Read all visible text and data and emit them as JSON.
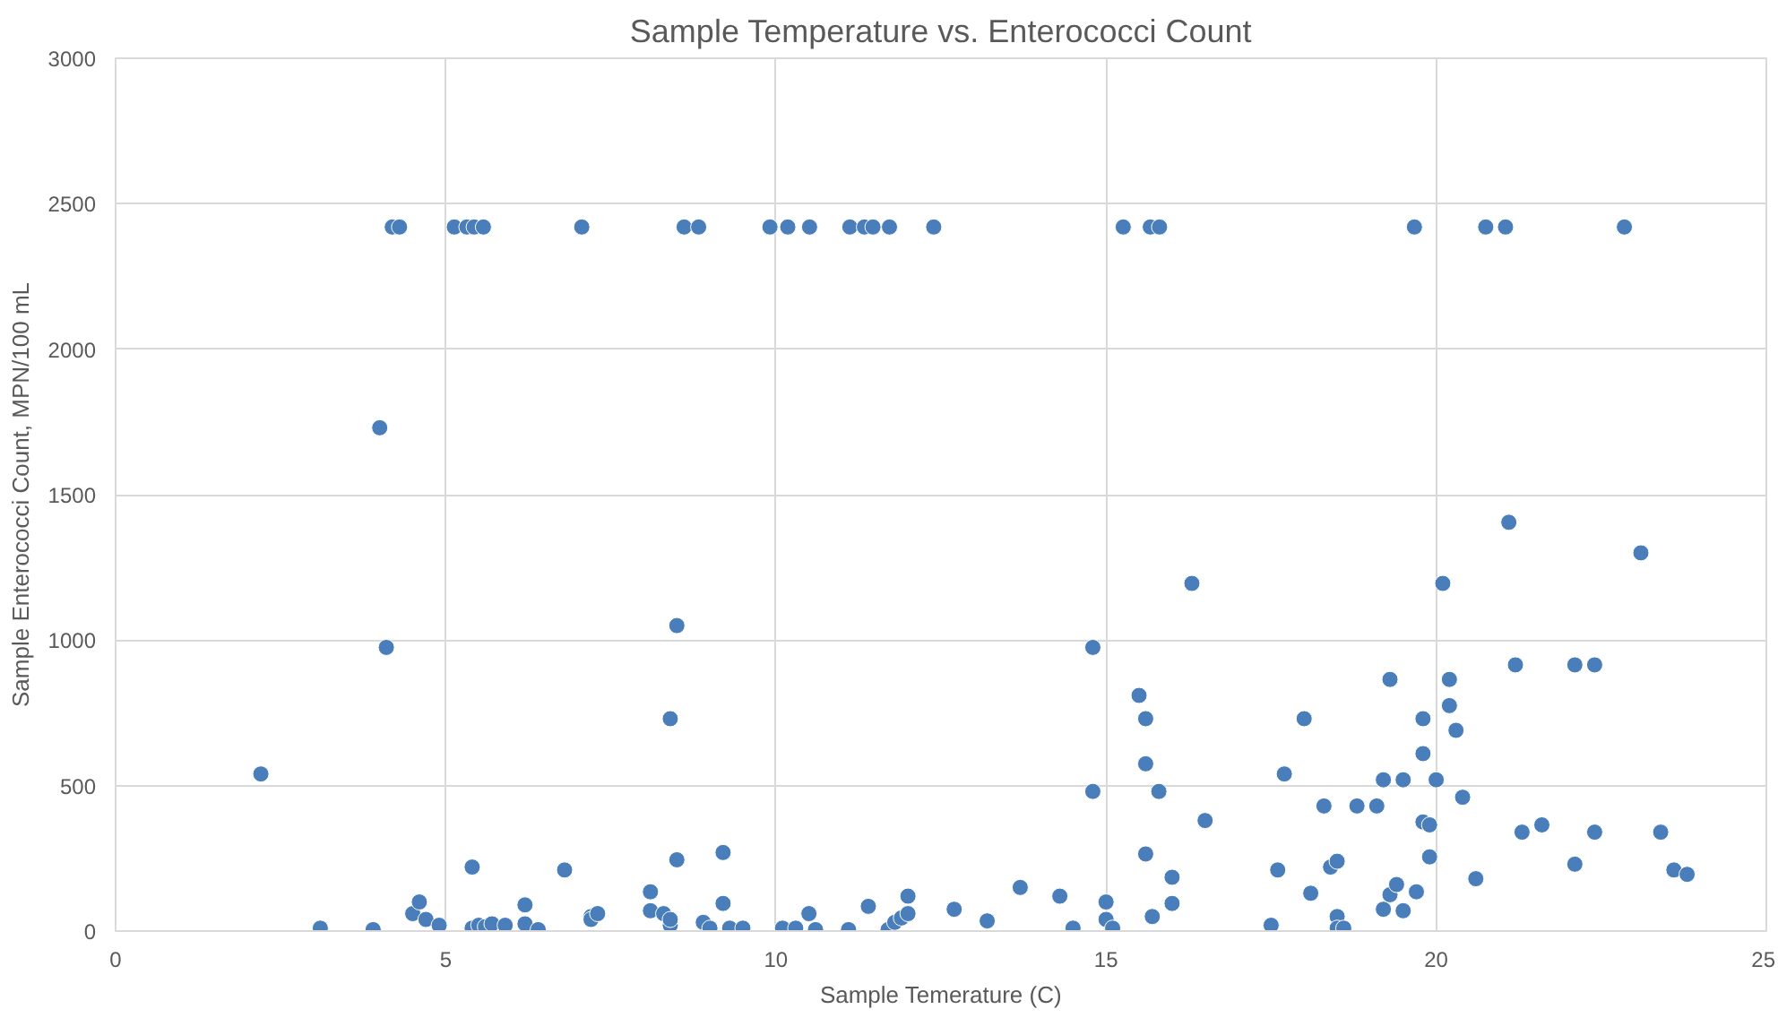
{
  "chart_data": {
    "type": "scatter",
    "title": "Sample Temperature vs. Enterococci Count",
    "xlabel": "Sample Temerature (C)",
    "ylabel": "Sample Enterococci Count, MPN/100 mL",
    "xlim": [
      0,
      25
    ],
    "ylim": [
      0,
      3000
    ],
    "xticks": [
      0,
      5,
      10,
      15,
      20,
      25
    ],
    "yticks": [
      0,
      500,
      1000,
      1500,
      2000,
      2500,
      3000
    ],
    "grid": true,
    "marker": "circle",
    "series": [
      {
        "color": "#4a7ebb",
        "x": [
          4.19,
          4.3,
          5.13,
          5.32,
          5.43,
          5.57,
          7.06,
          8.61,
          8.83,
          9.91,
          10.18,
          10.51,
          11.12,
          11.34,
          11.47,
          11.72,
          12.39,
          15.26,
          15.67,
          15.81,
          19.67,
          20.75,
          21.05,
          22.85,
          2.2,
          3.1,
          3.9,
          4.0,
          4.1,
          4.5,
          4.6,
          4.7,
          4.9,
          5.4,
          5.4,
          5.5,
          5.6,
          5.7,
          5.9,
          6.2,
          6.2,
          6.4,
          6.8,
          7.2,
          7.2,
          7.3,
          8.1,
          8.1,
          8.3,
          8.4,
          8.4,
          8.4,
          8.5,
          8.5,
          8.9,
          9.0,
          9.2,
          9.2,
          9.3,
          9.5,
          10.1,
          10.3,
          10.5,
          10.6,
          11.1,
          11.4,
          11.7,
          11.8,
          11.9,
          12.0,
          12.0,
          12.7,
          13.2,
          13.7,
          14.3,
          14.5,
          14.8,
          14.8,
          15.0,
          15.0,
          15.1,
          15.5,
          15.6,
          15.6,
          15.6,
          15.8,
          15.7,
          16.0,
          16.0,
          16.3,
          16.5,
          17.5,
          17.6,
          17.7,
          18.0,
          18.1,
          18.3,
          18.4,
          18.5,
          18.5,
          18.5,
          18.6,
          18.8,
          19.1,
          19.2,
          19.2,
          19.3,
          19.3,
          19.4,
          19.5,
          19.5,
          19.7,
          19.8,
          19.8,
          19.8,
          19.9,
          19.9,
          20.0,
          20.1,
          20.2,
          20.2,
          20.3,
          20.4,
          20.6,
          21.1,
          21.2,
          21.3,
          21.6,
          22.1,
          22.1,
          22.4,
          22.4,
          23.1,
          23.4,
          23.6,
          23.8
        ],
        "values": [
          2420,
          2420,
          2420,
          2420,
          2420,
          2420,
          2420,
          2420,
          2420,
          2420,
          2420,
          2420,
          2420,
          2420,
          2420,
          2420,
          2420,
          2420,
          2420,
          2420,
          2420,
          2420,
          2420,
          2420,
          540,
          10,
          5,
          1730,
          975,
          60,
          100,
          40,
          20,
          220,
          10,
          20,
          15,
          25,
          20,
          90,
          25,
          5,
          210,
          50,
          40,
          60,
          70,
          135,
          60,
          20,
          40,
          730,
          1050,
          245,
          30,
          10,
          270,
          95,
          10,
          10,
          10,
          10,
          60,
          5,
          5,
          85,
          5,
          30,
          45,
          120,
          60,
          75,
          35,
          150,
          120,
          10,
          975,
          480,
          40,
          100,
          10,
          810,
          730,
          575,
          265,
          480,
          50,
          185,
          95,
          1195,
          380,
          20,
          210,
          540,
          730,
          130,
          430,
          220,
          50,
          10,
          240,
          10,
          430,
          430,
          520,
          75,
          125,
          865,
          160,
          70,
          520,
          135,
          610,
          730,
          375,
          365,
          255,
          520,
          1195,
          865,
          775,
          690,
          460,
          180,
          1405,
          915,
          340,
          365,
          915,
          230,
          915,
          340,
          1300,
          340,
          210,
          195
        ]
      }
    ]
  }
}
